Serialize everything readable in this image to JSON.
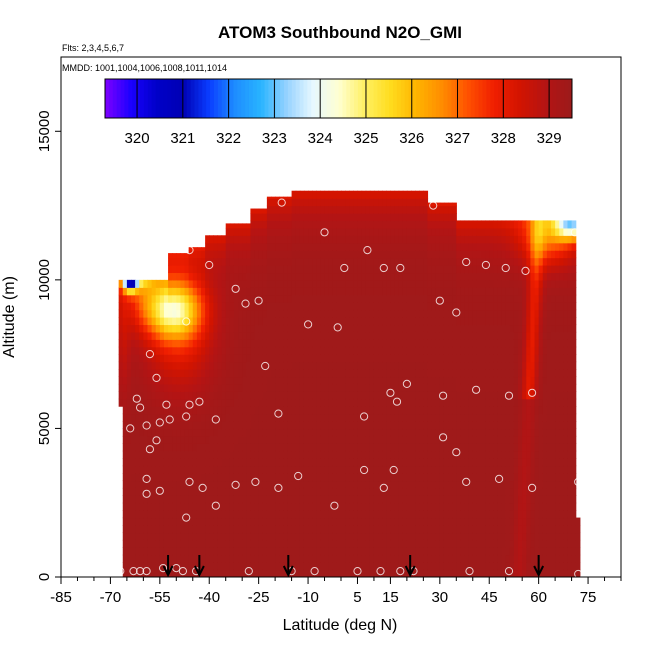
{
  "chart_data": {
    "type": "heatmap",
    "title": "ATOM3 Southbound N2O_GMI",
    "notes": {
      "flights": "Flts: 2,3,4,5,6,7",
      "dates": "MMDD: 1001,1004,1006,1008,1011,1014"
    },
    "xlabel": "Latitude (deg N)",
    "ylabel": "Altitude (m)",
    "xlim": [
      -85,
      85
    ],
    "ylim": [
      0,
      17500
    ],
    "x_ticks": [
      -85,
      -70,
      -55,
      -40,
      -25,
      -10,
      5,
      15,
      30,
      45,
      60,
      75
    ],
    "x_minor_step": 5,
    "y_ticks": [
      0,
      5000,
      10000,
      15000
    ],
    "colorbar": {
      "ticks": [
        320,
        321,
        322,
        323,
        324,
        325,
        326,
        327,
        328,
        329
      ],
      "range": [
        319.3,
        329.5
      ],
      "colors": [
        "#7f00ff",
        "#1a00ff",
        "#0000c8",
        "#0000b4",
        "#0a3cff",
        "#1e8cff",
        "#28b4ff",
        "#96d2ff",
        "#e6f8ff",
        "#ffffd2",
        "#fff064",
        "#ffdc1e",
        "#ffb400",
        "#ff8c00",
        "#ff5000",
        "#f01e00",
        "#d21400",
        "#b41414",
        "#9b1b1b"
      ]
    },
    "field": {
      "background_value": 329.4,
      "regions": [
        {
          "name": "upper-edge-band",
          "value": 328.0
        },
        {
          "name": "southern-upper-low",
          "center_lat": -51,
          "center_alt": 9100,
          "min_value": 325.0
        },
        {
          "name": "southern-tip-low",
          "center_lat": -64,
          "center_alt": 10100,
          "min_value": 320.0
        },
        {
          "name": "northern-top-low",
          "center_lat": 70,
          "center_alt": 11800,
          "min_value": 324.8
        }
      ]
    },
    "observations": [
      {
        "lat": -60,
        "alt": 10200
      },
      {
        "lat": -57,
        "alt": 10500
      },
      {
        "lat": -54,
        "alt": 10900
      },
      {
        "lat": -46,
        "alt": 11000
      },
      {
        "lat": -40,
        "alt": 10500
      },
      {
        "lat": -32,
        "alt": 9700
      },
      {
        "lat": -29,
        "alt": 9200
      },
      {
        "lat": -25,
        "alt": 9300
      },
      {
        "lat": -18,
        "alt": 12600
      },
      {
        "lat": 1,
        "alt": 10400
      },
      {
        "lat": 8,
        "alt": 11000
      },
      {
        "lat": 13,
        "alt": 10400
      },
      {
        "lat": 18,
        "alt": 10400
      },
      {
        "lat": 28,
        "alt": 12500
      },
      {
        "lat": 30,
        "alt": 9300
      },
      {
        "lat": 35,
        "alt": 8900
      },
      {
        "lat": 38,
        "alt": 10600
      },
      {
        "lat": 44,
        "alt": 10500
      },
      {
        "lat": 50,
        "alt": 10400
      },
      {
        "lat": 56,
        "alt": 10300
      },
      {
        "lat": 71,
        "alt": 11600
      },
      {
        "lat": -5,
        "alt": 11600
      },
      {
        "lat": -47,
        "alt": 8600
      },
      {
        "lat": -10,
        "alt": 8500
      },
      {
        "lat": -1,
        "alt": 8400
      },
      {
        "lat": -58,
        "alt": 7500
      },
      {
        "lat": -56,
        "alt": 6700
      },
      {
        "lat": -23,
        "alt": 7100
      },
      {
        "lat": 20,
        "alt": 6500
      },
      {
        "lat": 31,
        "alt": 6100
      },
      {
        "lat": 41,
        "alt": 6300
      },
      {
        "lat": 51,
        "alt": 6100
      },
      {
        "lat": 58,
        "alt": 6200
      },
      {
        "lat": 15,
        "alt": 6200
      },
      {
        "lat": 17,
        "alt": 5900
      },
      {
        "lat": -62,
        "alt": 6000
      },
      {
        "lat": -61,
        "alt": 5700
      },
      {
        "lat": -53,
        "alt": 5800
      },
      {
        "lat": -46,
        "alt": 5800
      },
      {
        "lat": -43,
        "alt": 5900
      },
      {
        "lat": -47,
        "alt": 5400
      },
      {
        "lat": -38,
        "alt": 5300
      },
      {
        "lat": -19,
        "alt": 5500
      },
      {
        "lat": 7,
        "alt": 5400
      },
      {
        "lat": -64,
        "alt": 5000
      },
      {
        "lat": -59,
        "alt": 5100
      },
      {
        "lat": -55,
        "alt": 5200
      },
      {
        "lat": -52,
        "alt": 5300
      },
      {
        "lat": -56,
        "alt": 4600
      },
      {
        "lat": -58,
        "alt": 4300
      },
      {
        "lat": 31,
        "alt": 4700
      },
      {
        "lat": 35,
        "alt": 4200
      },
      {
        "lat": -13,
        "alt": 3400
      },
      {
        "lat": 7,
        "alt": 3600
      },
      {
        "lat": 16,
        "alt": 3600
      },
      {
        "lat": -59,
        "alt": 3300
      },
      {
        "lat": -59,
        "alt": 2800
      },
      {
        "lat": -55,
        "alt": 2900
      },
      {
        "lat": -46,
        "alt": 3200
      },
      {
        "lat": -42,
        "alt": 3000
      },
      {
        "lat": -32,
        "alt": 3100
      },
      {
        "lat": -26,
        "alt": 3200
      },
      {
        "lat": -19,
        "alt": 3000
      },
      {
        "lat": 13,
        "alt": 3000
      },
      {
        "lat": 38,
        "alt": 3200
      },
      {
        "lat": 48,
        "alt": 3300
      },
      {
        "lat": 58,
        "alt": 3000
      },
      {
        "lat": 72,
        "alt": 3200
      },
      {
        "lat": -38,
        "alt": 2400
      },
      {
        "lat": -2,
        "alt": 2400
      },
      {
        "lat": -47,
        "alt": 2000
      },
      {
        "lat": -67,
        "alt": 200
      },
      {
        "lat": -63,
        "alt": 200
      },
      {
        "lat": -61,
        "alt": 200
      },
      {
        "lat": -59,
        "alt": 200
      },
      {
        "lat": -54,
        "alt": 300
      },
      {
        "lat": -50,
        "alt": 300
      },
      {
        "lat": -48,
        "alt": 200
      },
      {
        "lat": -44,
        "alt": 200
      },
      {
        "lat": -28,
        "alt": 200
      },
      {
        "lat": -15,
        "alt": 200
      },
      {
        "lat": -8,
        "alt": 200
      },
      {
        "lat": 5,
        "alt": 200
      },
      {
        "lat": 12,
        "alt": 200
      },
      {
        "lat": 18,
        "alt": 200
      },
      {
        "lat": 22,
        "alt": 200
      },
      {
        "lat": 39,
        "alt": 200
      },
      {
        "lat": 51,
        "alt": 200
      },
      {
        "lat": 72,
        "alt": 100
      }
    ],
    "arrows_latitude": [
      -52.5,
      -43,
      -16,
      21,
      60
    ]
  }
}
